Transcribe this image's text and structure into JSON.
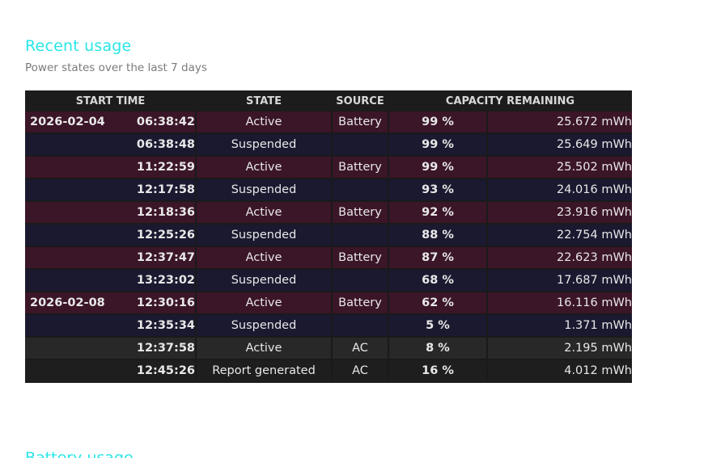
{
  "section": {
    "title": "Recent usage",
    "subtitle": "Power states over the last 7 days"
  },
  "next_section": {
    "title": "Battery usage"
  },
  "table": {
    "headers": {
      "start_time": "START TIME",
      "state": "STATE",
      "source": "SOURCE",
      "capacity": "CAPACITY REMAINING"
    },
    "rows": [
      {
        "date": "2026-02-04",
        "time": "06:38:42",
        "state": "Active",
        "source": "Battery",
        "percent": "99 %",
        "mwh": "25.672 mWh"
      },
      {
        "date": "",
        "time": "06:38:48",
        "state": "Suspended",
        "source": "",
        "percent": "99 %",
        "mwh": "25.649 mWh"
      },
      {
        "date": "",
        "time": "11:22:59",
        "state": "Active",
        "source": "Battery",
        "percent": "99 %",
        "mwh": "25.502 mWh"
      },
      {
        "date": "",
        "time": "12:17:58",
        "state": "Suspended",
        "source": "",
        "percent": "93 %",
        "mwh": "24.016 mWh"
      },
      {
        "date": "",
        "time": "12:18:36",
        "state": "Active",
        "source": "Battery",
        "percent": "92 %",
        "mwh": "23.916 mWh"
      },
      {
        "date": "",
        "time": "12:25:26",
        "state": "Suspended",
        "source": "",
        "percent": "88 %",
        "mwh": "22.754 mWh"
      },
      {
        "date": "",
        "time": "12:37:47",
        "state": "Active",
        "source": "Battery",
        "percent": "87 %",
        "mwh": "22.623 mWh"
      },
      {
        "date": "",
        "time": "13:23:02",
        "state": "Suspended",
        "source": "",
        "percent": "68 %",
        "mwh": "17.687 mWh"
      },
      {
        "date": "2026-02-08",
        "time": "12:30:16",
        "state": "Active",
        "source": "Battery",
        "percent": "62 %",
        "mwh": "16.116 mWh"
      },
      {
        "date": "",
        "time": "12:35:34",
        "state": "Suspended",
        "source": "",
        "percent": "5 %",
        "mwh": "1.371 mWh"
      },
      {
        "date": "",
        "time": "12:37:58",
        "state": "Active",
        "source": "AC",
        "percent": "8 %",
        "mwh": "2.195 mWh"
      },
      {
        "date": "",
        "time": "12:45:26",
        "state": "Report generated",
        "source": "AC",
        "percent": "16 %",
        "mwh": "4.012 mWh"
      }
    ]
  },
  "colors": {
    "title": "#29e6e6",
    "active_battery_row": "#3b1528",
    "suspended_row": "#1b1930",
    "ac_row": "#282828",
    "report_row": "#1e1e1e",
    "header_bg": "#1c1c1c"
  }
}
